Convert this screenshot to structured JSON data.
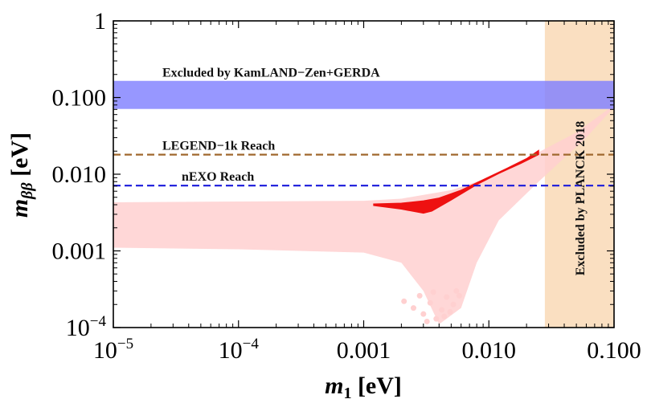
{
  "chart_data": {
    "type": "scatter",
    "xscale": "log",
    "yscale": "log",
    "xlim": [
      1e-05,
      0.1
    ],
    "ylim": [
      0.0001,
      1
    ],
    "xlabel": {
      "base": "m",
      "sub": "1",
      "unit": "[eV]"
    },
    "ylabel": {
      "base": "m",
      "sub": "ββ",
      "unit": "[eV]"
    },
    "x_ticks": [
      {
        "value": 1e-05,
        "mantissa": "10",
        "exp": "−5"
      },
      {
        "value": 0.0001,
        "mantissa": "10",
        "exp": "−4"
      },
      {
        "value": 0.001,
        "label": "0.001"
      },
      {
        "value": 0.01,
        "label": "0.010"
      },
      {
        "value": 0.1,
        "label": "0.100"
      }
    ],
    "y_ticks": [
      {
        "value": 0.0001,
        "mantissa": "10",
        "exp": "−4"
      },
      {
        "value": 0.001,
        "label": "0.001"
      },
      {
        "value": 0.01,
        "label": "0.010"
      },
      {
        "value": 0.1,
        "label": "0.100"
      },
      {
        "value": 1,
        "label": "1"
      }
    ],
    "excluded_band": {
      "label": "Excluded by KamLAND−Zen+GERDA",
      "ymin": 0.071,
      "ymax": 0.165,
      "color": "#8080ff"
    },
    "planck_region": {
      "label": "Excluded by PLANCK 2018",
      "xmin": 0.028,
      "xmax": 0.1,
      "color": "#f9d9b6"
    },
    "reference_lines": [
      {
        "label": "LEGEND−1k Reach",
        "y": 0.018,
        "color": "#a0682e"
      },
      {
        "label": "nEXO Reach",
        "y": 0.0071,
        "color": "#1a1adb"
      }
    ],
    "series": [
      {
        "color": "#ffd0d0",
        "region_upper": [
          [
            1e-05,
            0.0043
          ],
          [
            0.0001,
            0.0044
          ],
          [
            0.001,
            0.0045
          ],
          [
            0.002,
            0.0048
          ],
          [
            0.005,
            0.0062
          ],
          [
            0.01,
            0.009
          ],
          [
            0.02,
            0.016
          ],
          [
            0.05,
            0.035
          ],
          [
            0.1,
            0.08
          ]
        ],
        "region_lower": [
          [
            1e-05,
            0.0011
          ],
          [
            0.0001,
            0.00105
          ],
          [
            0.001,
            0.00095
          ],
          [
            0.002,
            0.0007
          ],
          [
            0.003,
            0.0003
          ],
          [
            0.004,
            0.00011
          ],
          [
            0.006,
            0.00018
          ],
          [
            0.008,
            0.0007
          ],
          [
            0.012,
            0.0025
          ],
          [
            0.025,
            0.008
          ],
          [
            0.06,
            0.03
          ],
          [
            0.1,
            0.075
          ]
        ],
        "scatter_points": [
          [
            0.0021,
            0.00022
          ],
          [
            0.0025,
            0.00018
          ],
          [
            0.003,
            0.00015
          ],
          [
            0.0034,
            0.00021
          ],
          [
            0.0038,
            0.00013
          ],
          [
            0.0042,
            0.00017
          ],
          [
            0.0046,
            0.00025
          ],
          [
            0.0052,
            0.0002
          ],
          [
            0.0058,
            0.00026
          ],
          [
            0.0032,
            0.00012
          ],
          [
            0.0028,
            0.00026
          ],
          [
            0.0044,
            0.00014
          ],
          [
            0.0049,
            0.00016
          ],
          [
            0.0036,
            0.00029
          ],
          [
            0.0055,
            0.0003
          ]
        ]
      },
      {
        "color": "#ee1111",
        "upper_branch": [
          [
            0.0012,
            0.0041
          ],
          [
            0.002,
            0.0042
          ],
          [
            0.003,
            0.0045
          ],
          [
            0.004,
            0.0049
          ],
          [
            0.006,
            0.0062
          ],
          [
            0.009,
            0.0085
          ],
          [
            0.014,
            0.012
          ],
          [
            0.02,
            0.016
          ],
          [
            0.025,
            0.0205
          ]
        ],
        "lower_branch": [
          [
            0.0012,
            0.0039
          ],
          [
            0.002,
            0.0035
          ],
          [
            0.003,
            0.0031
          ],
          [
            0.0035,
            0.0033
          ],
          [
            0.005,
            0.0046
          ],
          [
            0.008,
            0.0073
          ],
          [
            0.012,
            0.0102
          ],
          [
            0.018,
            0.0138
          ],
          [
            0.025,
            0.018
          ]
        ]
      }
    ]
  }
}
